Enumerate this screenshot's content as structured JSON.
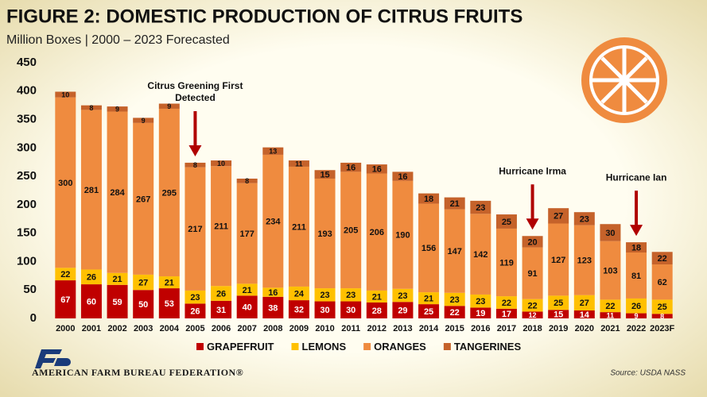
{
  "chart_data": {
    "type": "stacked-bar",
    "title": "FIGURE 2: DOMESTIC PRODUCTION OF CITRUS FRUITS",
    "subtitle": "Million Boxes | 2000 – 2023 Forecasted",
    "categories": [
      "2000",
      "2001",
      "2002",
      "2003",
      "2004",
      "2005",
      "2006",
      "2007",
      "2008",
      "2009",
      "2010",
      "2011",
      "2012",
      "2013",
      "2014",
      "2015",
      "2016",
      "2017",
      "2018",
      "2019",
      "2020",
      "2021",
      "2022",
      "2023F"
    ],
    "series": [
      {
        "name": "GRAPEFRUIT",
        "color": "#c00000",
        "values": [
          67,
          60,
          59,
          50,
          53,
          26,
          31,
          40,
          38,
          32,
          30,
          30,
          28,
          29,
          25,
          22,
          19,
          17,
          12,
          15,
          14,
          11,
          9,
          8
        ]
      },
      {
        "name": "LEMONS",
        "color": "#ffc000",
        "values": [
          22,
          26,
          21,
          27,
          21,
          23,
          26,
          21,
          16,
          24,
          23,
          23,
          21,
          23,
          21,
          23,
          23,
          22,
          22,
          25,
          27,
          22,
          26,
          25
        ]
      },
      {
        "name": "ORANGES",
        "color": "#ef8b3f",
        "values": [
          300,
          281,
          284,
          267,
          295,
          217,
          211,
          177,
          234,
          211,
          193,
          205,
          206,
          190,
          156,
          147,
          142,
          119,
          91,
          127,
          123,
          103,
          81,
          62
        ]
      },
      {
        "name": "TANGERINES",
        "color": "#c5622a",
        "values": [
          10,
          8,
          9,
          9,
          9,
          8,
          10,
          8,
          13,
          11,
          15,
          16,
          16,
          16,
          18,
          21,
          23,
          25,
          20,
          27,
          23,
          30,
          18,
          22
        ]
      }
    ],
    "ylim": [
      0,
      450
    ],
    "yticks": [
      0,
      50,
      100,
      150,
      200,
      250,
      300,
      350,
      400,
      450
    ],
    "grid": false,
    "annotations": [
      {
        "lines": [
          "Citrus Greening First",
          "Detected"
        ],
        "category": "2005"
      },
      {
        "lines": [
          "Hurricane Irma"
        ],
        "category": "2018"
      },
      {
        "lines": [
          "Hurricane Ian"
        ],
        "category": "2022"
      }
    ]
  },
  "footer": {
    "organization": "AMERICAN FARM BUREAU FEDERATION®",
    "source": "Source: USDA NASS"
  }
}
